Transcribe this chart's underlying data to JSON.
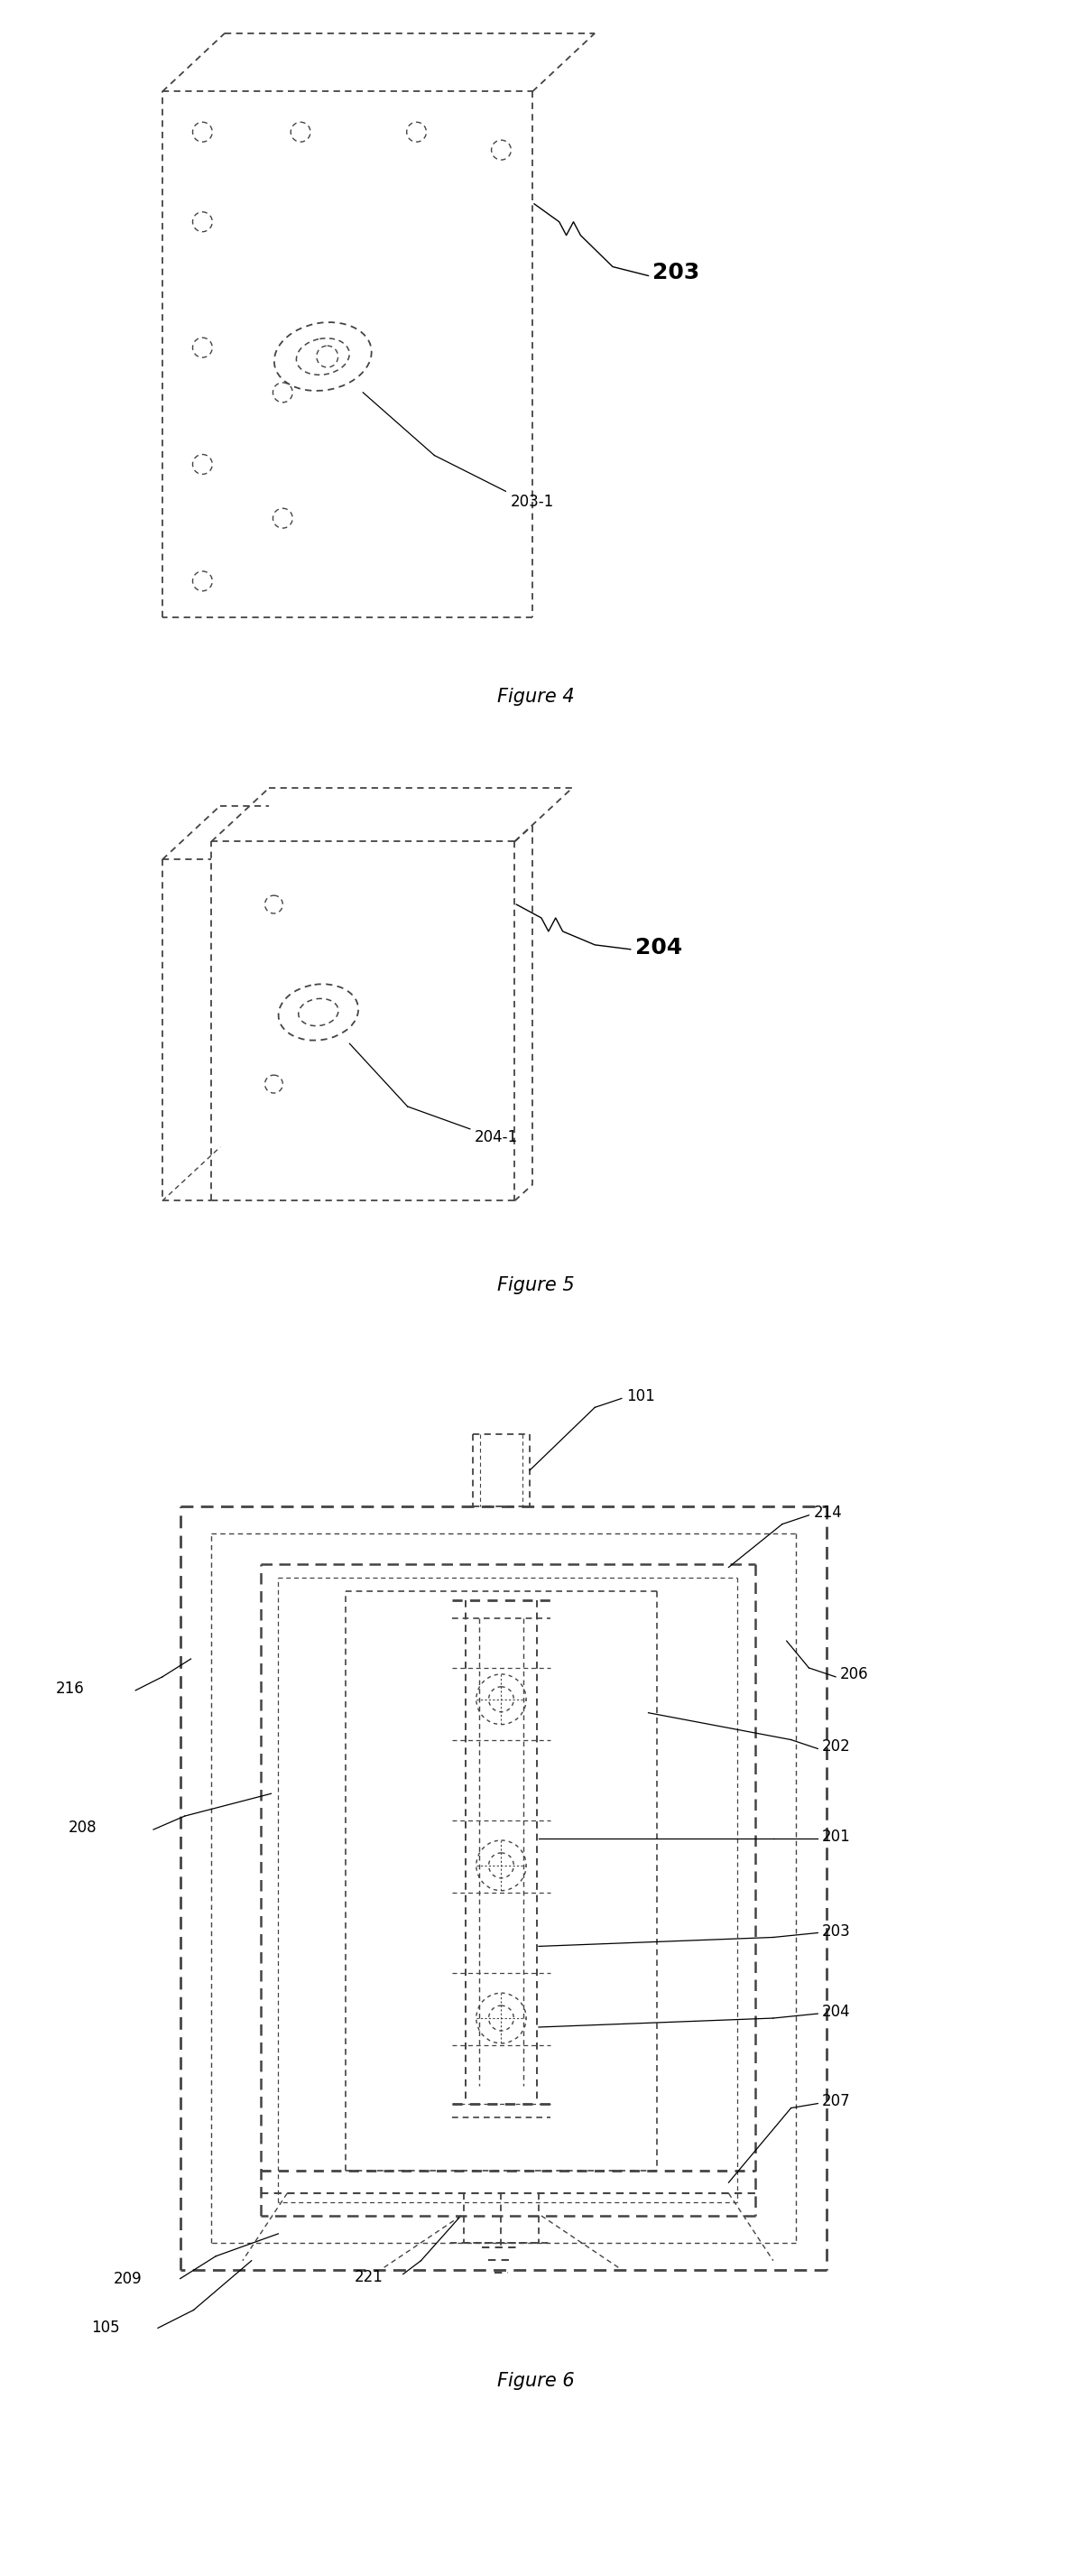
{
  "fig4_label": "Figure 4",
  "fig5_label": "Figure 5",
  "fig6_label": "Figure 6",
  "label_203": "203",
  "label_203_1": "203-1",
  "label_204": "204",
  "label_204_1": "204-1",
  "label_101": "101",
  "label_214": "214",
  "label_216": "216",
  "label_208": "208",
  "label_206": "206",
  "label_202": "202",
  "label_201": "201",
  "label_203b": "203",
  "label_204b": "204",
  "label_207": "207",
  "label_209": "209",
  "label_221": "221",
  "label_105": "105",
  "bg_color": "#ffffff",
  "line_color": "#000000",
  "dashed_color": "#444444",
  "figure_fontsize": 15,
  "label_fontsize": 12
}
